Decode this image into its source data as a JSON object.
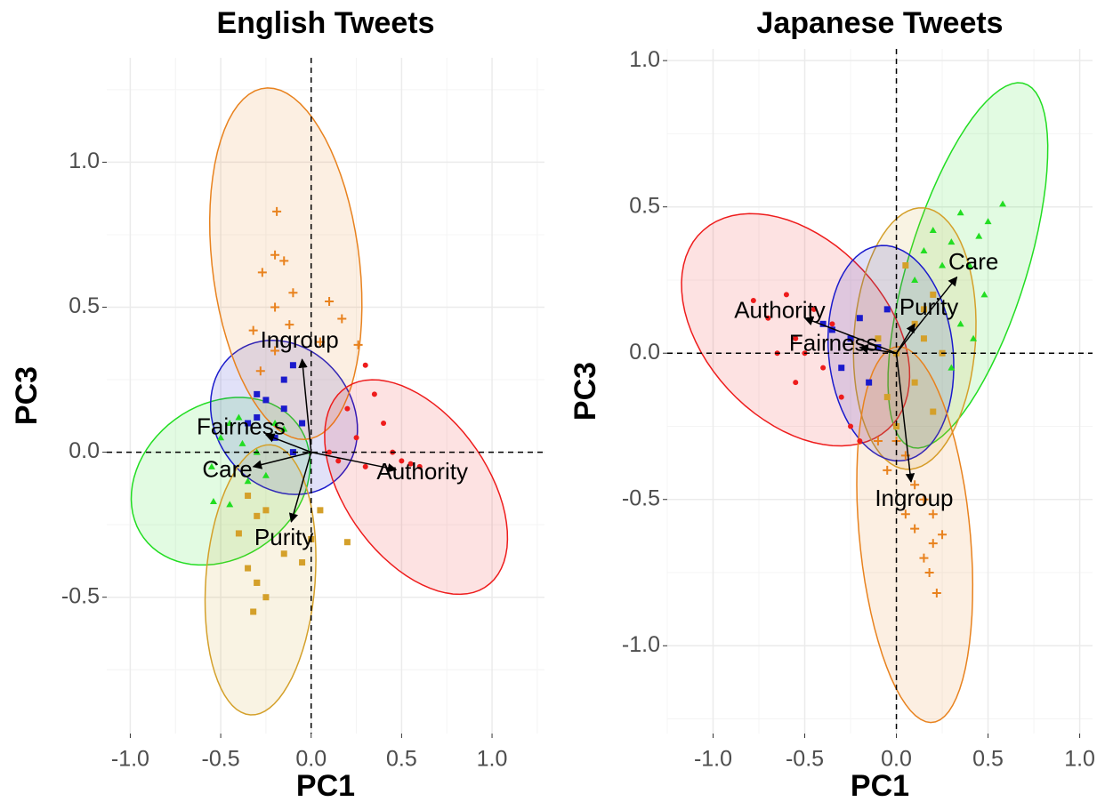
{
  "chart_data": [
    {
      "type": "biplot",
      "title": "English Tweets",
      "xlabel": "PC1",
      "ylabel": "PC3",
      "xlim": [
        -1.13,
        1.29
      ],
      "ylim": [
        -0.97,
        1.36
      ],
      "xticks": [
        {
          "value": -1.0,
          "label": "-1.0"
        },
        {
          "value": -0.5,
          "label": "-0.5"
        },
        {
          "value": 0.0,
          "label": "0.0"
        },
        {
          "value": 0.5,
          "label": "0.5"
        },
        {
          "value": 1.0,
          "label": "1.0"
        }
      ],
      "yticks": [
        {
          "value": -0.5,
          "label": "-0.5"
        },
        {
          "value": 0.0,
          "label": "0.0"
        },
        {
          "value": 0.5,
          "label": "0.5"
        },
        {
          "value": 1.0,
          "label": "1.0"
        }
      ],
      "minor_xticks": [
        -0.75,
        -0.25,
        0.25,
        0.75,
        1.25
      ],
      "minor_yticks": [
        -0.75,
        -0.25,
        0.25,
        0.75,
        1.25
      ],
      "hline": 0,
      "vline": 0,
      "grid": true,
      "series": [
        {
          "name": "Care",
          "color": "#22dd22",
          "marker": "triangle",
          "arrow": [
            -0.32,
            -0.05
          ],
          "ellipse": {
            "cx": -0.5,
            "cy": -0.1,
            "a": 0.5,
            "b": 0.28,
            "angle": 10
          },
          "x": [
            -0.55,
            -0.5,
            -0.45,
            -0.4,
            -0.35,
            -0.54,
            -0.45,
            -0.3,
            -0.2,
            -0.38,
            -0.25,
            -0.15
          ],
          "y": [
            -0.05,
            0.05,
            0.1,
            0.12,
            -0.1,
            -0.17,
            -0.18,
            0.0,
            0.1,
            0.03,
            -0.08,
            0.08
          ]
        },
        {
          "name": "Fairness",
          "color": "#1a1acc",
          "marker": "square",
          "arrow": [
            -0.25,
            0.06
          ],
          "ellipse": {
            "cx": -0.15,
            "cy": 0.12,
            "a": 0.41,
            "b": 0.26,
            "angle": -10
          },
          "x": [
            -0.25,
            -0.3,
            -0.15,
            -0.1,
            -0.35,
            -0.05,
            -0.2,
            -0.15,
            -0.3,
            -0.1
          ],
          "y": [
            0.18,
            0.12,
            0.25,
            0.3,
            0.1,
            0.1,
            0.05,
            0.15,
            0.2,
            0.0
          ]
        },
        {
          "name": "Ingroup",
          "color": "#e8821e",
          "marker": "plus",
          "arrow": [
            -0.05,
            0.32
          ],
          "ellipse": {
            "cx": -0.14,
            "cy": 0.65,
            "a": 0.62,
            "b": 0.4,
            "angle": 106
          },
          "x": [
            -0.19,
            -0.2,
            -0.15,
            -0.27,
            -0.1,
            -0.2,
            0.1,
            -0.32,
            0.17,
            -0.2,
            0.05,
            -0.28,
            0.26,
            -0.12
          ],
          "y": [
            0.83,
            0.68,
            0.66,
            0.62,
            0.55,
            0.5,
            0.52,
            0.42,
            0.46,
            0.35,
            0.38,
            0.28,
            0.37,
            0.44
          ]
        },
        {
          "name": "Authority",
          "color": "#ee1c1c",
          "marker": "circle",
          "arrow": [
            0.47,
            -0.06
          ],
          "ellipse": {
            "cx": 0.58,
            "cy": -0.12,
            "a": 0.55,
            "b": 0.3,
            "angle": -28
          },
          "x": [
            0.3,
            0.35,
            0.4,
            0.2,
            0.45,
            0.6,
            0.55,
            0.3,
            0.15,
            0.25,
            0.5,
            0.1
          ],
          "y": [
            0.3,
            0.2,
            0.1,
            0.15,
            0.0,
            -0.05,
            -0.04,
            -0.05,
            -0.03,
            0.05,
            -0.03,
            0.0
          ]
        },
        {
          "name": "Purity",
          "color": "#d4a02a",
          "marker": "square",
          "arrow": [
            -0.11,
            -0.24
          ],
          "ellipse": {
            "cx": -0.28,
            "cy": -0.44,
            "a": 0.47,
            "b": 0.3,
            "angle": 80
          },
          "x": [
            -0.35,
            -0.3,
            -0.25,
            -0.4,
            -0.35,
            -0.3,
            -0.25,
            -0.32,
            -0.15,
            -0.05,
            0.0,
            0.2,
            0.05,
            -0.3
          ],
          "y": [
            -0.15,
            -0.22,
            -0.2,
            -0.28,
            -0.4,
            -0.45,
            -0.5,
            -0.55,
            -0.35,
            -0.38,
            -0.3,
            -0.31,
            -0.2,
            -0.45
          ]
        }
      ]
    },
    {
      "type": "biplot",
      "title": "Japanese Tweets",
      "xlabel": "PC1",
      "ylabel": "PC3",
      "xlim": [
        -1.25,
        1.07
      ],
      "ylim": [
        -1.3,
        1.04
      ],
      "xticks": [
        {
          "value": -1.0,
          "label": "-1.0"
        },
        {
          "value": -0.5,
          "label": "-0.5"
        },
        {
          "value": 0.0,
          "label": "0.0"
        },
        {
          "value": 0.5,
          "label": "0.5"
        },
        {
          "value": 1.0,
          "label": "1.0"
        }
      ],
      "yticks": [
        {
          "value": -1.0,
          "label": "-1.0"
        },
        {
          "value": -0.5,
          "label": "-0.5"
        },
        {
          "value": 0.0,
          "label": "0.0"
        },
        {
          "value": 0.5,
          "label": "0.5"
        },
        {
          "value": 1.0,
          "label": "1.0"
        }
      ],
      "minor_xticks": [
        -1.25,
        -0.75,
        -0.25,
        0.25,
        0.75
      ],
      "minor_yticks": [
        -1.25,
        -0.75,
        -0.25,
        0.25,
        0.75
      ],
      "hline": 0,
      "vline": 0,
      "grid": true,
      "series": [
        {
          "name": "Care",
          "color": "#22dd22",
          "marker": "triangle",
          "arrow": [
            0.33,
            0.26
          ],
          "ellipse": {
            "cx": 0.39,
            "cy": 0.3,
            "a": 0.7,
            "b": 0.3,
            "angle": 60
          },
          "x": [
            0.58,
            0.5,
            0.45,
            0.35,
            0.3,
            0.4,
            0.2,
            0.25,
            0.15,
            0.48,
            0.35,
            0.1,
            0.42,
            0.3
          ],
          "y": [
            0.51,
            0.45,
            0.4,
            0.48,
            0.38,
            0.3,
            0.42,
            0.3,
            0.35,
            0.2,
            0.1,
            0.25,
            0.05,
            -0.05
          ]
        },
        {
          "name": "Authority",
          "color": "#ee1c1c",
          "marker": "circle",
          "arrow": [
            -0.5,
            0.12
          ],
          "ellipse": {
            "cx": -0.55,
            "cy": 0.08,
            "a": 0.65,
            "b": 0.35,
            "angle": -20
          },
          "x": [
            -0.78,
            -0.7,
            -0.6,
            -0.55,
            -0.5,
            -0.4,
            -0.45,
            -0.35,
            -0.3,
            -0.25,
            -0.2,
            -0.65,
            -0.55
          ],
          "y": [
            0.18,
            0.12,
            0.2,
            0.05,
            0.0,
            -0.05,
            0.15,
            0.1,
            -0.15,
            -0.25,
            -0.3,
            0.0,
            -0.1
          ]
        },
        {
          "name": "Purity",
          "color": "#d4a02a",
          "marker": "square",
          "arrow": [
            0.1,
            0.1
          ],
          "ellipse": {
            "cx": 0.1,
            "cy": 0.05,
            "a": 0.45,
            "b": 0.33,
            "angle": 80
          },
          "x": [
            0.0,
            0.1,
            0.15,
            -0.05,
            0.2,
            0.1,
            0.05,
            -0.1,
            0.25,
            0.0,
            0.2,
            0.15
          ],
          "y": [
            0.0,
            0.1,
            0.15,
            -0.15,
            0.2,
            -0.1,
            0.3,
            0.05,
            0.0,
            -0.25,
            -0.2,
            0.05
          ]
        },
        {
          "name": "Fairness",
          "color": "#1a1acc",
          "marker": "square",
          "arrow": [
            -0.2,
            0.02
          ],
          "ellipse": {
            "cx": -0.03,
            "cy": 0.0,
            "a": 0.38,
            "b": 0.33,
            "angle": -60
          },
          "x": [
            -0.35,
            -0.25,
            -0.1,
            -0.3,
            -0.2,
            -0.15,
            -0.05,
            -0.4
          ],
          "y": [
            0.08,
            0.05,
            0.02,
            -0.05,
            0.12,
            -0.1,
            0.15,
            0.1
          ]
        },
        {
          "name": "Ingroup",
          "color": "#e8821e",
          "marker": "plus",
          "arrow": [
            0.08,
            -0.44
          ],
          "ellipse": {
            "cx": 0.1,
            "cy": -0.62,
            "a": 0.65,
            "b": 0.3,
            "angle": 100
          },
          "x": [
            0.0,
            0.05,
            0.1,
            -0.05,
            0.15,
            0.1,
            0.2,
            0.15,
            0.2,
            0.25,
            0.05,
            0.22,
            -0.1,
            0.18
          ],
          "y": [
            -0.3,
            -0.35,
            -0.45,
            -0.4,
            -0.5,
            -0.6,
            -0.65,
            -0.7,
            -0.55,
            -0.62,
            -0.55,
            -0.82,
            -0.3,
            -0.75
          ]
        }
      ]
    }
  ]
}
